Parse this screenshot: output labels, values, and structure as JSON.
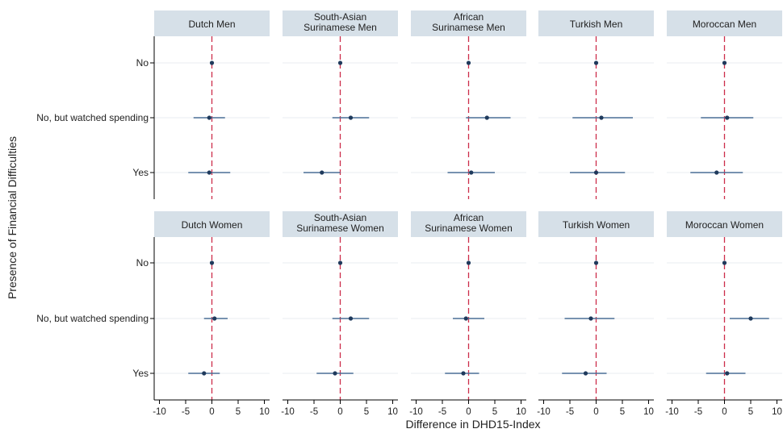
{
  "chart_data": {
    "type": "scatter",
    "subtype": "coefficient-plot",
    "xlabel": "Difference in DHD15-Index",
    "ylabel": "Presence of Financial Difficulties",
    "categories": [
      "No",
      "No, but watched spending",
      "Yes"
    ],
    "x_ticks": [
      "-10",
      "-5",
      "0",
      "5",
      "10"
    ],
    "xlim": [
      -11,
      11
    ],
    "reference_line": 0,
    "colors": {
      "strip": "#d6e0e8",
      "point": "#1f3a5c",
      "ci": "#4a6f95",
      "reference": "#cc2d4a",
      "gridline": "#e8ecf0"
    },
    "panels": [
      {
        "title": [
          "Dutch Men"
        ],
        "rows": [
          {
            "estimate": 0,
            "lower": 0,
            "upper": 0
          },
          {
            "estimate": -0.5,
            "lower": -3.5,
            "upper": 2.5
          },
          {
            "estimate": -0.5,
            "lower": -4.5,
            "upper": 3.5
          }
        ]
      },
      {
        "title": [
          "South-Asian",
          "Surinamese Men"
        ],
        "rows": [
          {
            "estimate": 0,
            "lower": 0,
            "upper": 0
          },
          {
            "estimate": 2,
            "lower": -1.5,
            "upper": 5.5
          },
          {
            "estimate": -3.5,
            "lower": -7,
            "upper": 0
          }
        ]
      },
      {
        "title": [
          "African",
          "Surinamese Men"
        ],
        "rows": [
          {
            "estimate": 0,
            "lower": 0,
            "upper": 0
          },
          {
            "estimate": 3.5,
            "lower": -0.5,
            "upper": 8
          },
          {
            "estimate": 0.5,
            "lower": -4,
            "upper": 5
          }
        ]
      },
      {
        "title": [
          "Turkish Men"
        ],
        "rows": [
          {
            "estimate": 0,
            "lower": 0,
            "upper": 0
          },
          {
            "estimate": 1,
            "lower": -4.5,
            "upper": 7
          },
          {
            "estimate": 0,
            "lower": -5,
            "upper": 5.5
          }
        ]
      },
      {
        "title": [
          "Moroccan Men"
        ],
        "rows": [
          {
            "estimate": 0,
            "lower": 0,
            "upper": 0
          },
          {
            "estimate": 0.5,
            "lower": -4.5,
            "upper": 5.5
          },
          {
            "estimate": -1.5,
            "lower": -6.5,
            "upper": 3.5
          }
        ]
      },
      {
        "title": [
          "Dutch Women"
        ],
        "rows": [
          {
            "estimate": 0,
            "lower": 0,
            "upper": 0
          },
          {
            "estimate": 0.5,
            "lower": -1.5,
            "upper": 3
          },
          {
            "estimate": -1.5,
            "lower": -4.5,
            "upper": 1.5
          }
        ]
      },
      {
        "title": [
          "South-Asian",
          "Surinamese Women"
        ],
        "rows": [
          {
            "estimate": 0,
            "lower": 0,
            "upper": 0
          },
          {
            "estimate": 2,
            "lower": -1.5,
            "upper": 5.5
          },
          {
            "estimate": -1,
            "lower": -4.5,
            "upper": 2.5
          }
        ]
      },
      {
        "title": [
          "African",
          "Surinamese Women"
        ],
        "rows": [
          {
            "estimate": 0,
            "lower": 0,
            "upper": 0
          },
          {
            "estimate": -0.5,
            "lower": -3,
            "upper": 3
          },
          {
            "estimate": -1,
            "lower": -4.5,
            "upper": 2
          }
        ]
      },
      {
        "title": [
          "Turkish Women"
        ],
        "rows": [
          {
            "estimate": 0,
            "lower": 0,
            "upper": 0
          },
          {
            "estimate": -1,
            "lower": -6,
            "upper": 3.5
          },
          {
            "estimate": -2,
            "lower": -6.5,
            "upper": 2
          }
        ]
      },
      {
        "title": [
          "Moroccan Women"
        ],
        "rows": [
          {
            "estimate": 0,
            "lower": 0,
            "upper": 0
          },
          {
            "estimate": 5,
            "lower": 1,
            "upper": 8.5
          },
          {
            "estimate": 0.5,
            "lower": -3.5,
            "upper": 4
          }
        ]
      }
    ]
  }
}
